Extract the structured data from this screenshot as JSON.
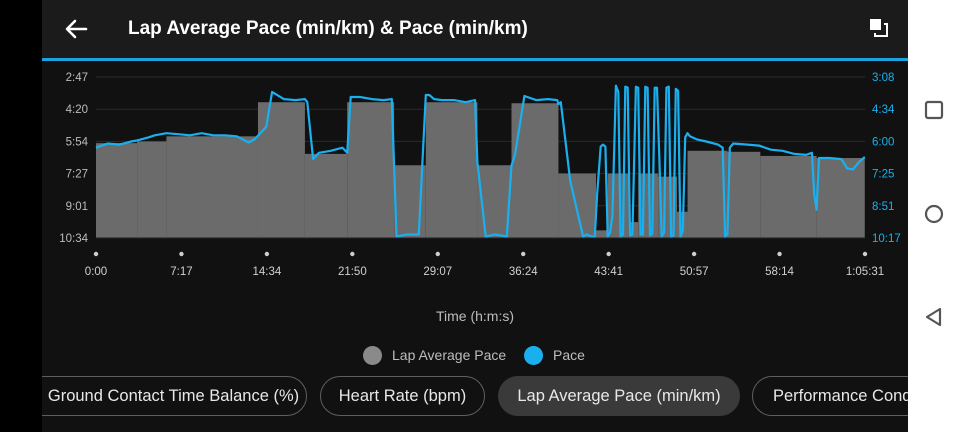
{
  "header": {
    "title": "Lap Average Pace (min/km) & Pace (min/km)",
    "back_icon": "arrow-left-icon",
    "expand_icon": "expand-icon"
  },
  "chart_data": {
    "type": "line",
    "xlabel": "Time (h:m:s)",
    "x_ticks": [
      "0:00",
      "7:17",
      "14:34",
      "21:50",
      "29:07",
      "36:24",
      "43:41",
      "50:57",
      "58:14",
      "1:05:31"
    ],
    "y_left_ticks": [
      "2:47",
      "4:20",
      "5:54",
      "7:27",
      "9:01",
      "10:34"
    ],
    "y_right_ticks": [
      "3:08",
      "4:34",
      "6:00",
      "7:25",
      "8:51",
      "10:17"
    ],
    "y_left_range_min_per_km": [
      2.78,
      10.57
    ],
    "y_right_range_min_per_km": [
      3.13,
      10.28
    ],
    "y_reversed": true,
    "legend_position": "bottom-center",
    "series": [
      {
        "name": "Lap Average Pace",
        "kind": "stepped-area",
        "color": "#8a8a8a",
        "axis": "left",
        "laps_minutes": [
          {
            "start": 0.0,
            "end": 3.5,
            "pace": 5.98
          },
          {
            "start": 3.5,
            "end": 6.0,
            "pace": 5.9
          },
          {
            "start": 6.0,
            "end": 13.8,
            "pace": 5.65
          },
          {
            "start": 13.8,
            "end": 17.8,
            "pace": 4.0
          },
          {
            "start": 17.8,
            "end": 21.4,
            "pace": 6.5
          },
          {
            "start": 21.4,
            "end": 25.4,
            "pace": 4.0
          },
          {
            "start": 25.4,
            "end": 28.1,
            "pace": 7.05
          },
          {
            "start": 28.1,
            "end": 32.5,
            "pace": 4.0
          },
          {
            "start": 32.5,
            "end": 35.4,
            "pace": 7.05
          },
          {
            "start": 35.4,
            "end": 39.4,
            "pace": 4.05
          },
          {
            "start": 39.4,
            "end": 42.6,
            "pace": 7.45
          },
          {
            "start": 42.6,
            "end": 43.6,
            "pace": 10.2
          },
          {
            "start": 43.6,
            "end": 45.4,
            "pace": 7.45
          },
          {
            "start": 45.4,
            "end": 46.2,
            "pace": 9.8
          },
          {
            "start": 46.2,
            "end": 47.9,
            "pace": 7.45
          },
          {
            "start": 47.9,
            "end": 49.5,
            "pace": 7.6
          },
          {
            "start": 49.5,
            "end": 50.4,
            "pace": 9.3
          },
          {
            "start": 50.4,
            "end": 53.8,
            "pace": 6.35
          },
          {
            "start": 53.8,
            "end": 56.6,
            "pace": 6.4
          },
          {
            "start": 56.6,
            "end": 61.4,
            "pace": 6.6
          },
          {
            "start": 61.4,
            "end": 65.5,
            "pace": 6.7
          }
        ]
      },
      {
        "name": "Pace",
        "kind": "line",
        "color": "#1ab0ef",
        "axis": "left",
        "x_minutes": [
          0.0,
          1.0,
          2.0,
          3.0,
          3.5,
          4.5,
          5.0,
          6.0,
          7.0,
          8.0,
          9.0,
          10.0,
          11.0,
          12.0,
          13.0,
          13.5,
          14.0,
          14.5,
          15.0,
          16.0,
          17.0,
          17.8,
          18.0,
          18.5,
          19.0,
          20.0,
          21.0,
          21.4,
          21.7,
          22.5,
          23.5,
          24.5,
          25.2,
          25.4,
          25.6,
          26.5,
          27.5,
          28.1,
          28.4,
          28.8,
          29.5,
          30.5,
          31.5,
          32.3,
          32.5,
          33.2,
          34.0,
          35.0,
          35.4,
          35.7,
          36.5,
          37.5,
          38.5,
          39.3,
          39.4,
          39.6,
          40.4,
          41.5,
          41.8,
          42.0,
          42.3,
          42.5,
          42.7,
          43.0,
          43.2,
          43.4,
          43.6,
          43.8,
          44.0,
          44.3,
          44.5,
          44.7,
          44.9,
          45.1,
          45.3,
          45.5,
          45.7,
          46.0,
          46.2,
          46.4,
          46.6,
          46.8,
          47.0,
          47.2,
          47.4,
          47.6,
          47.8,
          48.0,
          48.2,
          48.4,
          48.6,
          48.8,
          49.0,
          49.2,
          49.4,
          49.6,
          49.8,
          50.0,
          50.2,
          50.4,
          50.6,
          51.2,
          52.0,
          53.0,
          53.4,
          53.6,
          53.8,
          54.0,
          54.3,
          55.5,
          56.5,
          57.5,
          58.5,
          59.5,
          60.5,
          61.0,
          61.2,
          61.4,
          61.6,
          62.5,
          63.5,
          64.0,
          64.5,
          65.0,
          65.5
        ],
        "y_pace": [
          6.2,
          6.0,
          6.05,
          5.9,
          5.85,
          5.7,
          5.6,
          5.5,
          5.55,
          5.6,
          5.5,
          5.6,
          5.6,
          5.65,
          5.95,
          5.8,
          5.5,
          5.2,
          3.5,
          3.85,
          3.9,
          3.85,
          4.0,
          6.75,
          6.45,
          6.35,
          6.2,
          6.45,
          3.75,
          3.75,
          3.85,
          3.9,
          3.85,
          7.1,
          10.5,
          10.4,
          10.4,
          3.65,
          3.65,
          3.85,
          3.9,
          3.9,
          4.0,
          3.9,
          6.9,
          10.5,
          10.4,
          10.5,
          7.05,
          6.55,
          3.7,
          3.9,
          3.85,
          3.9,
          4.1,
          4.0,
          7.8,
          10.5,
          10.4,
          10.45,
          10.5,
          10.5,
          8.4,
          6.15,
          6.05,
          6.15,
          10.5,
          10.3,
          9.5,
          3.2,
          3.5,
          10.5,
          10.4,
          3.25,
          3.3,
          10.45,
          10.4,
          3.25,
          3.3,
          10.4,
          10.4,
          3.25,
          3.3,
          10.45,
          10.35,
          3.3,
          3.3,
          6.8,
          10.5,
          10.3,
          3.3,
          3.25,
          10.5,
          10.45,
          3.35,
          3.45,
          10.5,
          10.2,
          5.7,
          5.5,
          5.65,
          5.8,
          5.9,
          6.05,
          6.2,
          10.5,
          10.4,
          6.2,
          6.0,
          6.05,
          6.1,
          6.3,
          6.35,
          6.5,
          6.55,
          6.45,
          8.5,
          9.2,
          6.7,
          6.7,
          6.75,
          7.2,
          7.25,
          6.9,
          6.65
        ]
      }
    ]
  },
  "legend": [
    {
      "label": "Lap Average Pace",
      "color": "#8a8a8a"
    },
    {
      "label": "Pace",
      "color": "#1ab0ef"
    }
  ],
  "chips": [
    {
      "label": "Ground Contact Time Balance (%)",
      "selected": false
    },
    {
      "label": "Heart Rate (bpm)",
      "selected": false
    },
    {
      "label": "Lap Average Pace (min/km)",
      "selected": true
    },
    {
      "label": "Performance Cond",
      "selected": false
    }
  ],
  "system_nav": {
    "recents_icon": "square-recents-icon",
    "home_icon": "circle-home-icon",
    "back_icon": "triangle-back-icon"
  }
}
